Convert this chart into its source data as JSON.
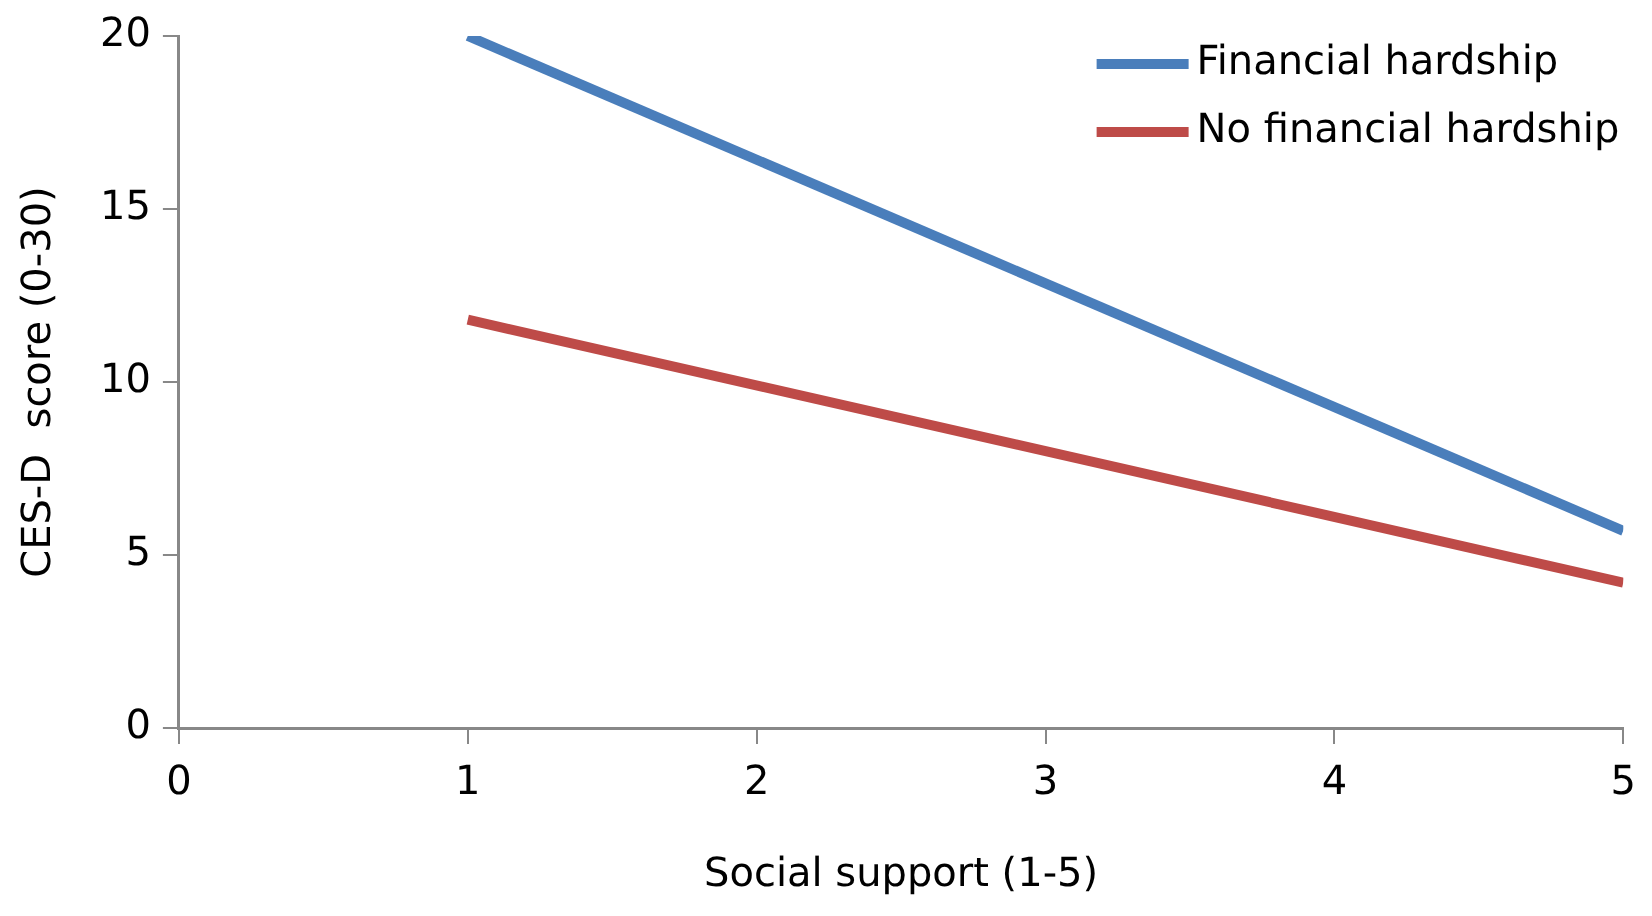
{
  "chart_data": {
    "type": "line",
    "xlabel": "Social support (1-5)",
    "ylabel": "CES-D  score (0-30)",
    "x": [
      1,
      5
    ],
    "series": [
      {
        "name": "Financial hardship",
        "color": "#4a7ebb",
        "values": [
          20,
          5.7
        ]
      },
      {
        "name": "No financial hardship",
        "color": "#be4b48",
        "values": [
          11.8,
          4.2
        ]
      }
    ],
    "xlim": [
      0,
      5
    ],
    "xticks": [
      0,
      1,
      2,
      3,
      4,
      5
    ],
    "ylim": [
      0,
      20
    ],
    "yticks": [
      0,
      5,
      10,
      15,
      20
    ],
    "grid": false,
    "legend": "top right",
    "marker": "none",
    "line_style": "solid"
  }
}
